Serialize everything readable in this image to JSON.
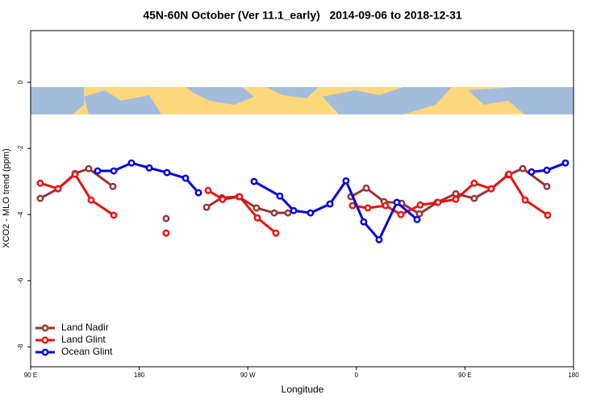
{
  "chart_data": {
    "type": "line",
    "title": "45N-60N October (Ver 11.1_early)   2014-09-06 to 2018-12-31",
    "x_label": "Longitude",
    "y_label": "XCO2 - MLO trend (ppm)",
    "xlim": [
      90,
      540
    ],
    "xticks": [
      {
        "value": 90,
        "label": "90 E"
      },
      {
        "value": 180,
        "label": "180"
      },
      {
        "value": 270,
        "label": "90 W"
      },
      {
        "value": 360,
        "label": "0"
      },
      {
        "value": 450,
        "label": "90 E"
      },
      {
        "value": 540,
        "label": "180"
      }
    ],
    "ylim": [
      -8.6,
      1.56
    ],
    "yticks": [
      0,
      -2,
      -4,
      -6,
      -8
    ],
    "legend": "lower left",
    "series": [
      {
        "name": "Land Nadir",
        "color": "#993333",
        "x": [
          98.0,
          112.7,
          126.8,
          138.1,
          158.2,
          null,
          202.3,
          null,
          235.8,
          248.5,
          262.5,
          277.2,
          291.9,
          303.3,
          null,
          355.4,
          368.2,
          382.9,
          397.6,
          412.3,
          427.0,
          442.4,
          457.7,
          471.8,
          485.8,
          497.9,
          517.9
        ],
        "values": [
          -3.51,
          -3.22,
          -2.76,
          -2.61,
          -3.15,
          null,
          -4.12,
          null,
          -3.78,
          -3.49,
          -3.46,
          -3.8,
          -3.95,
          -3.95,
          null,
          -3.46,
          -3.2,
          -3.61,
          -3.66,
          -3.98,
          -3.63,
          -3.37,
          -3.51,
          -3.22,
          -2.8,
          -2.61,
          -3.15
        ]
      },
      {
        "name": "Land Glint",
        "color": "#ee1111",
        "x": [
          98.0,
          112.7,
          126.8,
          140.1,
          158.9,
          null,
          202.3,
          null,
          237.1,
          249.1,
          263.2,
          277.9,
          293.3,
          null,
          356.8,
          369.5,
          384.2,
          396.9,
          413.0,
          427.7,
          442.4,
          457.7,
          471.8,
          486.5,
          499.9,
          518.6
        ],
        "values": [
          -3.05,
          -3.22,
          -2.78,
          -3.56,
          -4.02,
          null,
          -4.56,
          null,
          -3.27,
          -3.54,
          -3.46,
          -4.1,
          -4.56,
          null,
          -3.73,
          -3.8,
          -3.73,
          -4.0,
          -3.71,
          -3.63,
          -3.54,
          -3.05,
          -3.22,
          -2.78,
          -3.56,
          -4.02
        ]
      },
      {
        "name": "Ocean Glint",
        "color": "#0000dd",
        "x": [
          145.5,
          158.9,
          173.6,
          188.3,
          203.0,
          218.4,
          229.1,
          null,
          275.2,
          296.6,
          308.0,
          322.0,
          338.1,
          351.4,
          366.1,
          378.8,
          393.6,
          410.3,
          null,
          505.2,
          517.9,
          533.3
        ],
        "values": [
          -2.68,
          -2.68,
          -2.44,
          -2.59,
          -2.73,
          -2.9,
          -3.34,
          null,
          -3.0,
          -3.44,
          -3.88,
          -3.95,
          -3.68,
          -2.98,
          -4.22,
          -4.76,
          -3.63,
          -4.15,
          null,
          -2.71,
          -2.66,
          -2.44
        ]
      }
    ]
  }
}
